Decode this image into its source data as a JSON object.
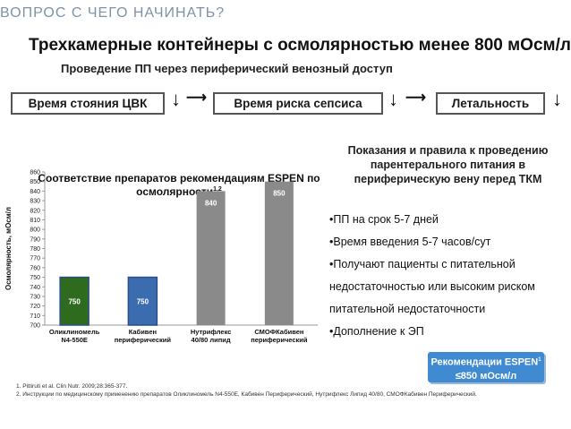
{
  "page_title": "ВОПРОС С ЧЕГО НАЧИНАТЬ?",
  "headline": "Трехкамерные контейнеры с осмолярностью менее 800 мОсм/л",
  "subheadline": "Проведение ПП через периферический венозный доступ",
  "flow": {
    "box1": "Время стояния ЦВК",
    "box2": "Время риска сепсиса",
    "box3": "Летальность",
    "down_arrow": "↓",
    "right_arrow": "⟶"
  },
  "indications": {
    "title": "Показания и правила к проведению парентерального питания в периферическую вену перед ТКМ",
    "bullets": [
      "•ПП на срок 5-7 дней",
      "•Время введения 5-7 часов/сут",
      "•Получают пациенты с питательной",
      "недостаточностью или высоким риском",
      "питательной недостаточности",
      "•Дополнение к ЭП"
    ]
  },
  "recommendation": {
    "line1": "Рекомендации ESPEN",
    "sup": "1",
    "line2": "≤850 мОсм/л"
  },
  "references": [
    "1. Pittiruti et al. Clin Nutr. 2009;28:365-377.",
    "2. Инструкции по медицинскому применению препаратов Оликлиномель N4-550E, Кабивен Периферический, Нутрифлекс Липид 40/80, СМОФКабивен Периферический."
  ],
  "chart_data": {
    "type": "bar",
    "title": "Соответствие препаратов рекомендациям ESPEN по осмолярности",
    "title_sup": "1,2",
    "ylabel": "Осмолярность, мОсм/л",
    "xlabel": "",
    "ylim": [
      700,
      860
    ],
    "yticks": [
      700,
      710,
      720,
      730,
      740,
      750,
      760,
      770,
      780,
      790,
      800,
      810,
      820,
      830,
      840,
      850,
      860
    ],
    "grid": false,
    "categories": [
      [
        "Оликлиномель",
        "N4-550E"
      ],
      [
        "Кабивен",
        "периферический"
      ],
      [
        "Нутрифлекс",
        "40/80 липид"
      ],
      [
        "СМОФКабивен",
        "периферический"
      ]
    ],
    "values": [
      750,
      750,
      840,
      850
    ],
    "data_labels": [
      "750",
      "750",
      "840",
      "850"
    ],
    "colors": [
      "#2e6b1f",
      "#3c6cb0",
      "#8a8a8a",
      "#8a8a8a"
    ]
  }
}
